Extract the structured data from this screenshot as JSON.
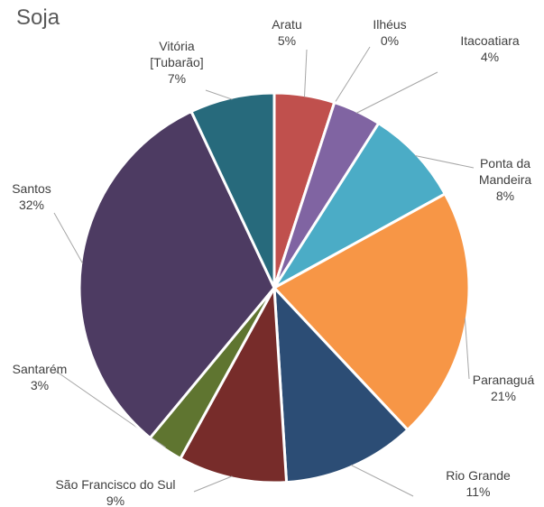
{
  "chart_data": {
    "type": "pie",
    "title": "Soja",
    "categories": [
      "Aratu",
      "Ilhéus",
      "Itacoatiara",
      "Ponta da Mandeira",
      "Paranaguá",
      "Rio Grande",
      "São Francisco do Sul",
      "Santarém",
      "Santos",
      "Vitória [Tubarão]"
    ],
    "values": [
      5,
      0,
      4,
      8,
      21,
      11,
      9,
      3,
      32,
      7
    ],
    "value_labels": [
      "5%",
      "0%",
      "4%",
      "8%",
      "21%",
      "11%",
      "9%",
      "3%",
      "32%",
      "7%"
    ],
    "colors": [
      "#c0504d",
      "#9bbb59",
      "#8064a2",
      "#4bacc6",
      "#f79646",
      "#2c4d75",
      "#772c2a",
      "#5f7530",
      "#4d3b62",
      "#276a7c"
    ]
  }
}
